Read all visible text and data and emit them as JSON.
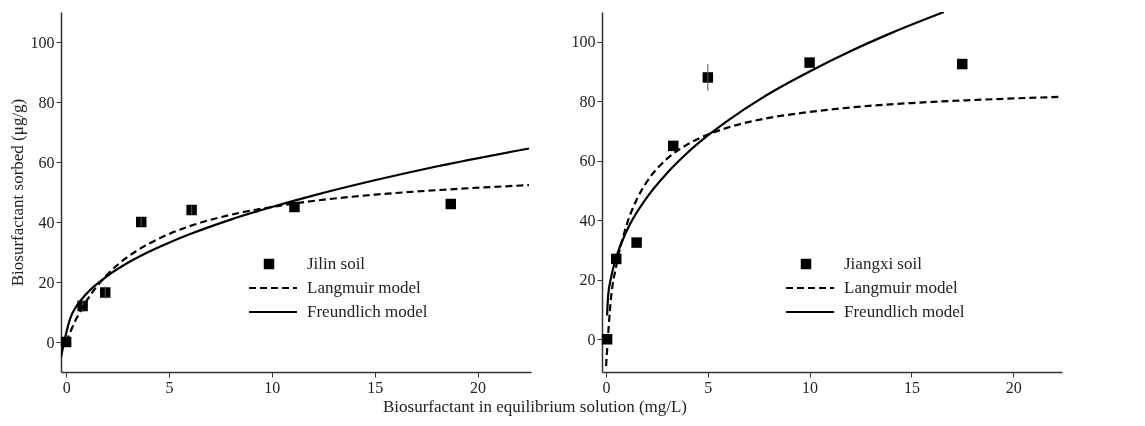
{
  "chart_data": [
    {
      "type": "scatter",
      "xlabel": "Biosurfactant in equilibrium solution (mg/L)",
      "ylabel": "Biosurfactant sorbed (μg/g)",
      "xlim": [
        -0.25,
        22.6
      ],
      "ylim": [
        -10,
        110
      ],
      "xticks": [
        0,
        5,
        10,
        15,
        20
      ],
      "yticks": [
        0,
        20,
        40,
        60,
        80,
        100
      ],
      "grid": false,
      "legend": "bottom",
      "series": [
        {
          "name": "Jilin soil",
          "type": "scatter",
          "marker": "square",
          "color": "#000000",
          "x": [
            0,
            0.8,
            1.9,
            3.65,
            6.1,
            11.1,
            18.7
          ],
          "values": [
            0,
            12,
            16.5,
            40,
            44,
            45,
            46
          ],
          "errors": [
            null,
            2,
            2,
            1.5,
            1.5,
            null,
            null
          ]
        },
        {
          "name": "Langmuir  model",
          "type": "line",
          "line_style": "dashed",
          "color": "#000000",
          "x": [
            0,
            0.5,
            1,
            2,
            3,
            4,
            5,
            6,
            8,
            10,
            12,
            15,
            18,
            22.5
          ],
          "values": [
            0,
            7.8,
            13.8,
            22.5,
            28.4,
            32.7,
            36,
            38.6,
            42.4,
            45,
            47,
            49.1,
            50.6,
            52.3
          ]
        },
        {
          "name": "Freundlich  model",
          "type": "line",
          "line_style": "solid",
          "color": "#000000",
          "x": [
            -0.25,
            0.05,
            0.2,
            0.5,
            1,
            2,
            3,
            4,
            5,
            6,
            8,
            10,
            12,
            15,
            18,
            22.5
          ],
          "values": [
            -5,
            4.3,
            7.9,
            11.9,
            16.2,
            22,
            26.4,
            30,
            33.1,
            35.9,
            40.8,
            45,
            48.8,
            53.9,
            58.5,
            64.5
          ]
        }
      ]
    },
    {
      "type": "scatter",
      "xlim": [
        -0.2,
        22.4
      ],
      "ylim": [
        -11,
        110
      ],
      "xticks": [
        0,
        5,
        10,
        15,
        20
      ],
      "yticks": [
        0,
        20,
        40,
        60,
        80,
        100
      ],
      "grid": false,
      "legend": "bottom",
      "series": [
        {
          "name": "Jiangxi soil",
          "type": "scatter",
          "marker": "square",
          "color": "#000000",
          "x": [
            0.05,
            0.5,
            1.5,
            3.3,
            5,
            10,
            17.5
          ],
          "values": [
            0,
            27,
            32.5,
            65,
            88,
            93,
            92.5
          ],
          "errors": [
            null,
            null,
            null,
            null,
            [
              83.5,
              92.5
            ],
            null,
            null
          ]
        },
        {
          "name": "Langmuir  model",
          "type": "line",
          "line_style": "dashed",
          "color": "#000000",
          "x": [
            0,
            0.25,
            0.5,
            1,
            1.5,
            2,
            3,
            4,
            5,
            6,
            8,
            10,
            12,
            15,
            18,
            22.4
          ],
          "values": [
            -9,
            14.3,
            24.6,
            38.2,
            46.9,
            52.9,
            60.7,
            65.5,
            68.8,
            71.2,
            74.4,
            76.4,
            77.9,
            79.4,
            80.4,
            81.5
          ]
        },
        {
          "name": "Freundlich  model",
          "type": "line",
          "line_style": "solid",
          "color": "#000000",
          "x": [
            0.05,
            0.1,
            0.25,
            0.5,
            1,
            2,
            3,
            4,
            5,
            6,
            8,
            10,
            12,
            14,
            16.6
          ],
          "values": [
            8,
            14.5,
            20.9,
            27.5,
            36.2,
            47.6,
            55.9,
            62.7,
            68.5,
            73.6,
            82.5,
            90,
            96.8,
            102.9,
            110
          ]
        }
      ]
    }
  ]
}
